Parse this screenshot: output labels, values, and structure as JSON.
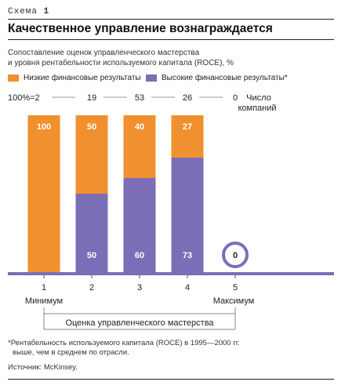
{
  "header": {
    "scheme_label": "Схема",
    "scheme_number": "1",
    "title": "Качественное управление вознаграждается",
    "subtitle_line1": "Сопоставление оценок управленческого мастерства",
    "subtitle_line2": "и уровня рентабельности используемого капитала (ROCE), %"
  },
  "colors": {
    "low": "#f0902f",
    "high": "#7b6eb6",
    "baseline": "#7b6eb6"
  },
  "chart_data": {
    "type": "bar",
    "stacked": true,
    "categories": [
      "1",
      "2",
      "3",
      "4",
      "5"
    ],
    "series": [
      {
        "name": "Высокие финансовые результаты*",
        "values": [
          0,
          50,
          60,
          73,
          0
        ]
      },
      {
        "name": "Низкие финансовые результаты",
        "values": [
          100,
          50,
          40,
          27,
          0
        ]
      }
    ],
    "company_counts": [
      "100%=2",
      "19",
      "53",
      "26",
      "0"
    ],
    "company_count_label_line1": "Число",
    "company_count_label_line2": "компаний",
    "x_min_label": "Минимум",
    "x_max_label": "Максимум",
    "xlabel": "Оценка управленческого мастерства",
    "ylim": [
      0,
      100
    ],
    "legend": [
      "Низкие финансовые результаты",
      "Высокие финансовые результаты*"
    ]
  },
  "footnote_line1": "*Рентабельность используемого капитала (ROCE) в 1995—2000 гг.",
  "footnote_line2": "выше, чем в среднем по отрасли.",
  "source": "Источник: McKinsey."
}
